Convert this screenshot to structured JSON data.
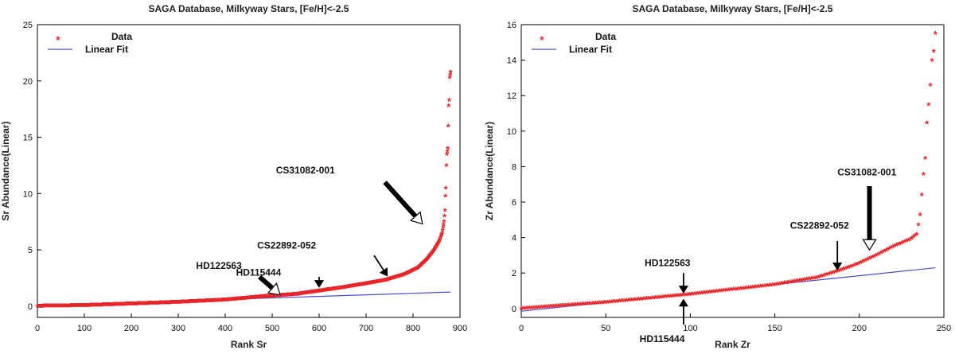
{
  "chart_data": [
    {
      "type": "scatter",
      "title": "SAGA Database, Milkyway Stars, [Fe/H]<-2.5",
      "xlabel": "Rank Sr",
      "ylabel": "Sr Abundance(Linear)",
      "xlim": [
        0,
        900
      ],
      "ylim": [
        -1,
        25
      ],
      "xticks": [
        0,
        100,
        200,
        300,
        400,
        500,
        600,
        700,
        800,
        900
      ],
      "yticks": [
        0,
        5,
        10,
        15,
        20,
        25
      ],
      "grid": false,
      "legend_position": "top-left",
      "legend": {
        "data_label": "Data",
        "fit_label": "Linear Fit"
      },
      "colors": {
        "data": "#e8272a",
        "fit": "#4a4ad8",
        "annotation": "#000000"
      },
      "series": [
        {
          "name": "Data",
          "marker": "asterisk",
          "n": 880,
          "profile": [
            [
              0,
              0.0
            ],
            [
              100,
              0.06
            ],
            [
              200,
              0.2
            ],
            [
              300,
              0.35
            ],
            [
              400,
              0.55
            ],
            [
              480,
              0.85
            ],
            [
              550,
              1.05
            ],
            [
              600,
              1.35
            ],
            [
              650,
              1.65
            ],
            [
              700,
              2.0
            ],
            [
              740,
              2.3
            ],
            [
              780,
              2.8
            ],
            [
              810,
              3.4
            ],
            [
              830,
              4.2
            ],
            [
              845,
              5.0
            ],
            [
              855,
              5.7
            ],
            [
              862,
              6.5
            ],
            [
              866,
              7.5
            ],
            [
              868,
              8.5
            ],
            [
              869,
              9.8
            ],
            [
              870,
              10.5
            ],
            [
              871,
              12.5
            ],
            [
              872,
              13.5
            ],
            [
              874,
              14.0
            ],
            [
              875,
              16.0
            ],
            [
              876,
              17.8
            ],
            [
              877,
              18.3
            ],
            [
              878,
              20.3
            ],
            [
              880,
              20.8
            ]
          ]
        },
        {
          "name": "Linear Fit",
          "type": "line",
          "x": [
            0,
            880
          ],
          "y": [
            0.05,
            1.25
          ]
        }
      ],
      "annotations": [
        {
          "label": "HD122563",
          "target": [
            517,
            1.0
          ],
          "text_at": [
            338,
            3.3
          ],
          "tail": [
            473,
            2.6
          ],
          "size": "large"
        },
        {
          "label": "HD115444",
          "target": [
            600,
            1.7
          ],
          "text_at": [
            423,
            2.7
          ],
          "tail": [
            600,
            2.6
          ],
          "size": "small"
        },
        {
          "label": "CS22892-052",
          "target": [
            745,
            2.7
          ],
          "text_at": [
            468,
            5.1
          ],
          "tail": [
            717,
            4.5
          ],
          "size": "small"
        },
        {
          "label": "CS31082-001",
          "target": [
            820,
            7.3
          ],
          "text_at": [
            508,
            11.8
          ],
          "tail": [
            740,
            11.0
          ],
          "size": "large"
        }
      ]
    },
    {
      "type": "scatter",
      "title": "SAGA Database, Milkyway Stars, [Fe/H]<-2.5",
      "xlabel": "Rank Zr",
      "ylabel": "Zr Abundance(Linear)",
      "xlim": [
        0,
        250
      ],
      "ylim": [
        -0.5,
        16
      ],
      "xticks": [
        0,
        50,
        100,
        150,
        200,
        250
      ],
      "yticks": [
        0,
        2,
        4,
        6,
        8,
        10,
        12,
        14,
        16
      ],
      "grid": false,
      "legend_position": "top-left",
      "legend": {
        "data_label": "Data",
        "fit_label": "Linear Fit"
      },
      "colors": {
        "data": "#e8272a",
        "fit": "#4a4ad8",
        "annotation": "#000000"
      },
      "series": [
        {
          "name": "Data",
          "marker": "asterisk",
          "n": 245,
          "profile": [
            [
              0,
              0.0
            ],
            [
              50,
              0.35
            ],
            [
              100,
              0.8
            ],
            [
              150,
              1.35
            ],
            [
              175,
              1.75
            ],
            [
              190,
              2.2
            ],
            [
              200,
              2.55
            ],
            [
              210,
              3.0
            ],
            [
              220,
              3.5
            ],
            [
              230,
              3.9
            ],
            [
              234,
              4.2
            ],
            [
              236,
              5.3
            ],
            [
              238,
              7.6
            ],
            [
              239,
              8.5
            ],
            [
              240,
              10.5
            ],
            [
              241,
              11.5
            ],
            [
              242,
              12.6
            ],
            [
              243,
              14.0
            ],
            [
              244,
              14.5
            ],
            [
              245,
              15.5
            ]
          ]
        },
        {
          "name": "Linear Fit",
          "type": "line",
          "x": [
            0,
            245
          ],
          "y": [
            -0.15,
            2.3
          ]
        }
      ],
      "annotations": [
        {
          "label": "HD122563",
          "target": [
            96,
            0.9
          ],
          "text_at": [
            73,
            2.4
          ],
          "tail": [
            96,
            2.0
          ],
          "size": "small"
        },
        {
          "label": "HD115444",
          "target": [
            96,
            0.5
          ],
          "text_at": [
            70,
            -1.9
          ],
          "tail": [
            96,
            -0.9
          ],
          "size": "small"
        },
        {
          "label": "CS22892-052",
          "target": [
            187,
            2.2
          ],
          "text_at": [
            159,
            4.5
          ],
          "tail": [
            187,
            3.8
          ],
          "size": "small"
        },
        {
          "label": "CS31082-001",
          "target": [
            206,
            3.3
          ],
          "text_at": [
            187,
            7.5
          ],
          "tail": [
            206,
            6.9
          ],
          "size": "large"
        }
      ]
    }
  ]
}
